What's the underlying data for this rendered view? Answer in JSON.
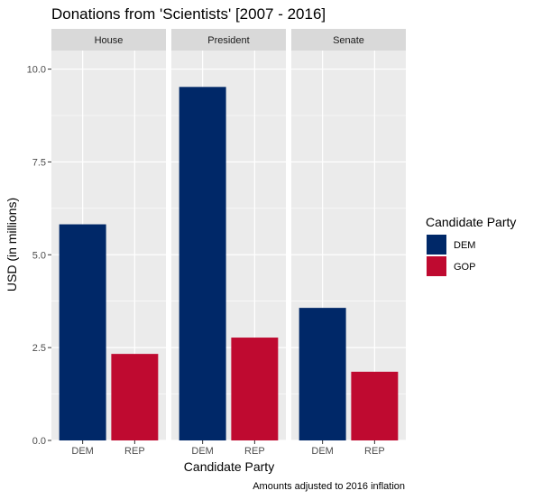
{
  "chart_data": {
    "type": "bar",
    "title": "Donations from 'Scientists' [2007 - 2016]",
    "xlabel": "Candidate Party",
    "ylabel": "USD (in millions)",
    "caption": "Amounts adjusted to 2016 inflation",
    "ylim": [
      0,
      10.5
    ],
    "yticks": [
      0,
      2.5,
      5,
      7.5,
      10
    ],
    "ytick_labels": [
      "0.0",
      "2.5",
      "5.0",
      "7.5",
      "10.0"
    ],
    "grid": true,
    "legend": {
      "title": "Candidate Party",
      "placement": "right",
      "entries": [
        {
          "label": "DEM",
          "color": "#002868"
        },
        {
          "label": "GOP",
          "color": "#BF0A30"
        }
      ]
    },
    "facets": [
      {
        "label": "House",
        "categories": [
          "DEM",
          "REP"
        ],
        "values": [
          5.82,
          2.33
        ],
        "colors": [
          "#002868",
          "#BF0A30"
        ]
      },
      {
        "label": "President",
        "categories": [
          "DEM",
          "REP"
        ],
        "values": [
          9.52,
          2.77
        ],
        "colors": [
          "#002868",
          "#BF0A30"
        ]
      },
      {
        "label": "Senate",
        "categories": [
          "DEM",
          "REP"
        ],
        "values": [
          3.57,
          1.85
        ],
        "colors": [
          "#002868",
          "#BF0A30"
        ]
      }
    ]
  }
}
